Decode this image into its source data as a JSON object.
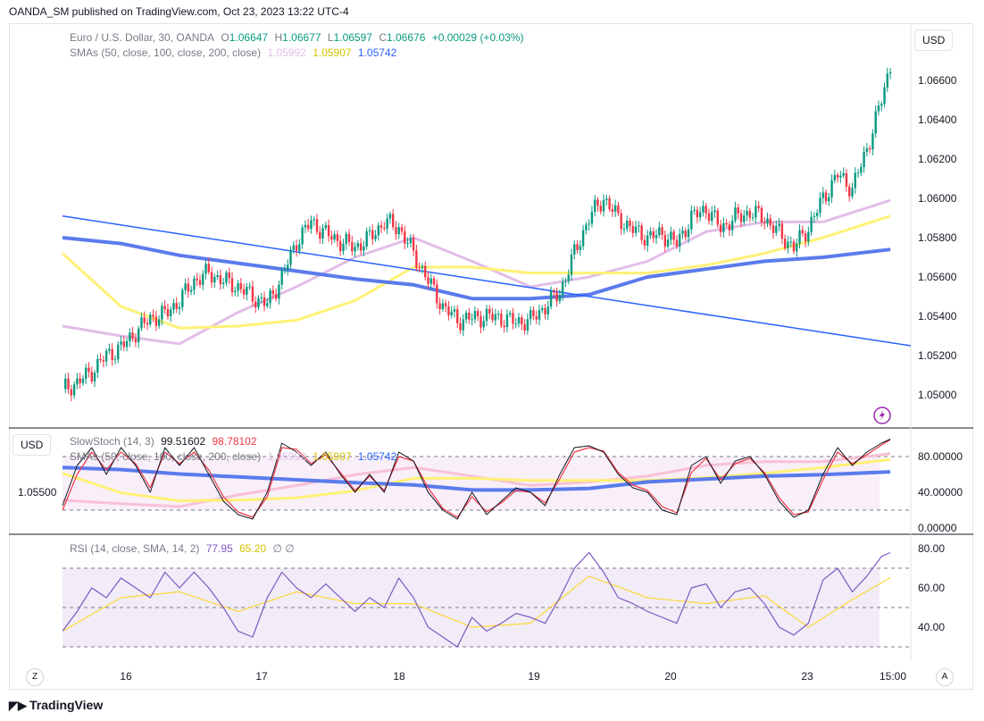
{
  "header": {
    "published": "OANDA_SM published on TradingView.com, Oct 23, 2023 13:22 UTC-4"
  },
  "main_legend": {
    "symbol": "Euro / U.S. Dollar, 30, OANDA",
    "o_label": "O",
    "o": "1.06647",
    "h_label": "H",
    "h": "1.06677",
    "l_label": "L",
    "l": "1.06597",
    "c_label": "C",
    "c": "1.06676",
    "change": "+0.00029 (+0.03%)",
    "sma_label": "SMAs (50, close, 100, close, 200, close)",
    "sma50": "1.05992",
    "sma100": "1.05907",
    "sma200": "1.05742"
  },
  "stoch_legend": {
    "label": "SlowStoch (14, 3)",
    "k": "99.51602",
    "d": "98.78102",
    "sma_label": "SMAs (50, close, 100, close, 200, close)",
    "sma50": "1.05992",
    "sma100": "1.05907",
    "sma200": "1.05742"
  },
  "rsi_legend": {
    "label": "RSI (14, close, SMA, 14, 2)",
    "rsi": "77.95",
    "ma": "65.20",
    "extra": "∅ ∅"
  },
  "buttons": {
    "currency_main": "USD",
    "currency_stoch": "USD",
    "left_price": "1.05500",
    "zoom": "Z",
    "auto": "A"
  },
  "footer": {
    "brand": "TradingView"
  },
  "colors": {
    "up": "#089981",
    "down": "#f23645",
    "sma50": "#e1bee7",
    "sma100": "#fff176",
    "sma200": "#5b7bec",
    "trend": "#2962ff",
    "rsi": "#7e57c2",
    "rsi_ma": "#fdd835"
  },
  "chart_data": {
    "type": "candlestick",
    "x_ticks": [
      "16",
      "17",
      "18",
      "19",
      "20",
      "23",
      "15:00"
    ],
    "y_ticks": [
      "1.06600",
      "1.06400",
      "1.06200",
      "1.06000",
      "1.05800",
      "1.05600",
      "1.05400",
      "1.05200",
      "1.05000"
    ],
    "price_path": [
      [
        0,
        1.0503
      ],
      [
        5,
        1.0506
      ],
      [
        10,
        1.0512
      ],
      [
        15,
        1.052
      ],
      [
        20,
        1.0524
      ],
      [
        25,
        1.0532
      ],
      [
        30,
        1.0539
      ],
      [
        35,
        1.0541
      ],
      [
        40,
        1.0548
      ],
      [
        45,
        1.0558
      ],
      [
        50,
        1.0562
      ],
      [
        55,
        1.0558
      ],
      [
        60,
        1.0555
      ],
      [
        65,
        1.055
      ],
      [
        70,
        1.0546
      ],
      [
        75,
        1.056
      ],
      [
        80,
        1.0578
      ],
      [
        85,
        1.0588
      ],
      [
        90,
        1.0582
      ],
      [
        95,
        1.0578
      ],
      [
        100,
        1.0575
      ],
      [
        105,
        1.058
      ],
      [
        110,
        1.0588
      ],
      [
        115,
        1.0585
      ],
      [
        120,
        1.0572
      ],
      [
        125,
        1.0558
      ],
      [
        130,
        1.0545
      ],
      [
        135,
        1.0538
      ],
      [
        140,
        1.0539
      ],
      [
        145,
        1.054
      ],
      [
        150,
        1.0539
      ],
      [
        155,
        1.0537
      ],
      [
        160,
        1.0538
      ],
      [
        165,
        1.0545
      ],
      [
        170,
        1.0552
      ],
      [
        175,
        1.0572
      ],
      [
        180,
        1.059
      ],
      [
        185,
        1.06
      ],
      [
        190,
        1.059
      ],
      [
        195,
        1.0584
      ],
      [
        200,
        1.058
      ],
      [
        205,
        1.0582
      ],
      [
        210,
        1.0577
      ],
      [
        215,
        1.059
      ],
      [
        220,
        1.0595
      ],
      [
        225,
        1.0585
      ],
      [
        230,
        1.059
      ],
      [
        235,
        1.0593
      ],
      [
        240,
        1.059
      ],
      [
        245,
        1.0582
      ],
      [
        250,
        1.0575
      ],
      [
        255,
        1.0585
      ],
      [
        260,
        1.06
      ],
      [
        265,
        1.0612
      ],
      [
        270,
        1.0605
      ],
      [
        275,
        1.0625
      ],
      [
        280,
        1.065
      ],
      [
        283,
        1.06676
      ]
    ],
    "sma50_path": [
      [
        0,
        1.0535
      ],
      [
        20,
        1.053
      ],
      [
        40,
        1.0526
      ],
      [
        60,
        1.0542
      ],
      [
        80,
        1.0555
      ],
      [
        100,
        1.057
      ],
      [
        120,
        1.058
      ],
      [
        140,
        1.0568
      ],
      [
        160,
        1.0555
      ],
      [
        180,
        1.056
      ],
      [
        200,
        1.0568
      ],
      [
        220,
        1.0583
      ],
      [
        240,
        1.0588
      ],
      [
        260,
        1.0588
      ],
      [
        283,
        1.0599
      ]
    ],
    "sma100_path": [
      [
        0,
        1.0572
      ],
      [
        20,
        1.0545
      ],
      [
        40,
        1.0534
      ],
      [
        60,
        1.0535
      ],
      [
        80,
        1.0538
      ],
      [
        100,
        1.0548
      ],
      [
        120,
        1.0565
      ],
      [
        140,
        1.0565
      ],
      [
        160,
        1.0562
      ],
      [
        180,
        1.0562
      ],
      [
        200,
        1.0562
      ],
      [
        220,
        1.0566
      ],
      [
        240,
        1.0572
      ],
      [
        260,
        1.058
      ],
      [
        283,
        1.0591
      ]
    ],
    "sma200_path": [
      [
        0,
        1.058
      ],
      [
        20,
        1.0577
      ],
      [
        40,
        1.0571
      ],
      [
        60,
        1.0567
      ],
      [
        80,
        1.0563
      ],
      [
        100,
        1.0559
      ],
      [
        120,
        1.0556
      ],
      [
        140,
        1.0549
      ],
      [
        160,
        1.0549
      ],
      [
        180,
        1.0551
      ],
      [
        200,
        1.056
      ],
      [
        220,
        1.0564
      ],
      [
        240,
        1.0568
      ],
      [
        260,
        1.057
      ],
      [
        283,
        1.0574
      ]
    ],
    "trendline": [
      [
        0,
        1.0591
      ],
      [
        290,
        1.0525
      ]
    ],
    "stoch": {
      "y_ticks": [
        "80.00000",
        "40.00000",
        "0.00000"
      ],
      "levels": [
        80,
        20
      ],
      "k_path": [
        [
          0,
          25
        ],
        [
          5,
          70
        ],
        [
          10,
          90
        ],
        [
          15,
          60
        ],
        [
          20,
          90
        ],
        [
          25,
          70
        ],
        [
          30,
          40
        ],
        [
          35,
          90
        ],
        [
          40,
          70
        ],
        [
          45,
          90
        ],
        [
          50,
          60
        ],
        [
          55,
          30
        ],
        [
          60,
          15
        ],
        [
          65,
          10
        ],
        [
          70,
          40
        ],
        [
          75,
          95
        ],
        [
          80,
          85
        ],
        [
          85,
          70
        ],
        [
          90,
          85
        ],
        [
          95,
          60
        ],
        [
          100,
          40
        ],
        [
          105,
          60
        ],
        [
          110,
          40
        ],
        [
          115,
          85
        ],
        [
          120,
          75
        ],
        [
          125,
          40
        ],
        [
          130,
          20
        ],
        [
          135,
          10
        ],
        [
          140,
          40
        ],
        [
          145,
          15
        ],
        [
          150,
          30
        ],
        [
          155,
          45
        ],
        [
          160,
          40
        ],
        [
          165,
          25
        ],
        [
          170,
          60
        ],
        [
          175,
          90
        ],
        [
          180,
          92
        ],
        [
          185,
          85
        ],
        [
          190,
          60
        ],
        [
          195,
          45
        ],
        [
          200,
          40
        ],
        [
          205,
          20
        ],
        [
          210,
          15
        ],
        [
          215,
          70
        ],
        [
          220,
          80
        ],
        [
          225,
          50
        ],
        [
          230,
          75
        ],
        [
          235,
          80
        ],
        [
          240,
          60
        ],
        [
          245,
          30
        ],
        [
          250,
          12
        ],
        [
          255,
          20
        ],
        [
          260,
          60
        ],
        [
          265,
          90
        ],
        [
          270,
          70
        ],
        [
          275,
          85
        ],
        [
          280,
          95
        ],
        [
          283,
          99.5
        ]
      ],
      "d_path": [
        [
          0,
          20
        ],
        [
          5,
          60
        ],
        [
          10,
          85
        ],
        [
          15,
          65
        ],
        [
          20,
          85
        ],
        [
          25,
          72
        ],
        [
          30,
          45
        ],
        [
          35,
          85
        ],
        [
          40,
          72
        ],
        [
          45,
          85
        ],
        [
          50,
          65
        ],
        [
          55,
          35
        ],
        [
          60,
          18
        ],
        [
          65,
          12
        ],
        [
          70,
          35
        ],
        [
          75,
          90
        ],
        [
          80,
          88
        ],
        [
          85,
          72
        ],
        [
          90,
          82
        ],
        [
          95,
          62
        ],
        [
          100,
          42
        ],
        [
          105,
          58
        ],
        [
          110,
          42
        ],
        [
          115,
          80
        ],
        [
          120,
          75
        ],
        [
          125,
          45
        ],
        [
          130,
          22
        ],
        [
          135,
          12
        ],
        [
          140,
          35
        ],
        [
          145,
          18
        ],
        [
          150,
          28
        ],
        [
          155,
          42
        ],
        [
          160,
          40
        ],
        [
          165,
          28
        ],
        [
          170,
          55
        ],
        [
          175,
          85
        ],
        [
          180,
          90
        ],
        [
          185,
          86
        ],
        [
          190,
          62
        ],
        [
          195,
          48
        ],
        [
          200,
          42
        ],
        [
          205,
          24
        ],
        [
          210,
          17
        ],
        [
          215,
          62
        ],
        [
          220,
          78
        ],
        [
          225,
          54
        ],
        [
          230,
          72
        ],
        [
          235,
          78
        ],
        [
          240,
          62
        ],
        [
          245,
          34
        ],
        [
          250,
          15
        ],
        [
          255,
          18
        ],
        [
          260,
          54
        ],
        [
          265,
          85
        ],
        [
          270,
          72
        ],
        [
          275,
          82
        ],
        [
          280,
          93
        ],
        [
          283,
          98.8
        ]
      ]
    },
    "rsi": {
      "y_ticks": [
        "80.00",
        "60.00",
        "40.00"
      ],
      "levels": [
        70,
        50,
        30
      ],
      "rsi_path": [
        [
          0,
          38
        ],
        [
          5,
          48
        ],
        [
          10,
          60
        ],
        [
          15,
          55
        ],
        [
          20,
          65
        ],
        [
          25,
          60
        ],
        [
          30,
          55
        ],
        [
          35,
          68
        ],
        [
          40,
          60
        ],
        [
          45,
          68
        ],
        [
          50,
          60
        ],
        [
          55,
          50
        ],
        [
          60,
          38
        ],
        [
          65,
          35
        ],
        [
          70,
          55
        ],
        [
          75,
          68
        ],
        [
          80,
          60
        ],
        [
          85,
          55
        ],
        [
          90,
          62
        ],
        [
          95,
          55
        ],
        [
          100,
          48
        ],
        [
          105,
          55
        ],
        [
          110,
          50
        ],
        [
          115,
          65
        ],
        [
          120,
          55
        ],
        [
          125,
          40
        ],
        [
          130,
          35
        ],
        [
          135,
          30
        ],
        [
          140,
          45
        ],
        [
          145,
          38
        ],
        [
          150,
          42
        ],
        [
          155,
          47
        ],
        [
          160,
          45
        ],
        [
          165,
          42
        ],
        [
          170,
          55
        ],
        [
          175,
          70
        ],
        [
          180,
          78
        ],
        [
          185,
          68
        ],
        [
          190,
          55
        ],
        [
          195,
          52
        ],
        [
          200,
          48
        ],
        [
          205,
          45
        ],
        [
          210,
          42
        ],
        [
          215,
          60
        ],
        [
          220,
          62
        ],
        [
          225,
          50
        ],
        [
          230,
          58
        ],
        [
          235,
          60
        ],
        [
          240,
          52
        ],
        [
          245,
          40
        ],
        [
          250,
          36
        ],
        [
          255,
          42
        ],
        [
          260,
          64
        ],
        [
          265,
          70
        ],
        [
          270,
          58
        ],
        [
          275,
          66
        ],
        [
          280,
          76
        ],
        [
          283,
          77.95
        ]
      ],
      "ma_path": [
        [
          0,
          38
        ],
        [
          20,
          55
        ],
        [
          40,
          58
        ],
        [
          60,
          48
        ],
        [
          80,
          58
        ],
        [
          100,
          52
        ],
        [
          120,
          52
        ],
        [
          140,
          40
        ],
        [
          160,
          42
        ],
        [
          180,
          66
        ],
        [
          200,
          55
        ],
        [
          220,
          52
        ],
        [
          240,
          56
        ],
        [
          255,
          40
        ],
        [
          270,
          54
        ],
        [
          283,
          65.2
        ]
      ]
    }
  }
}
